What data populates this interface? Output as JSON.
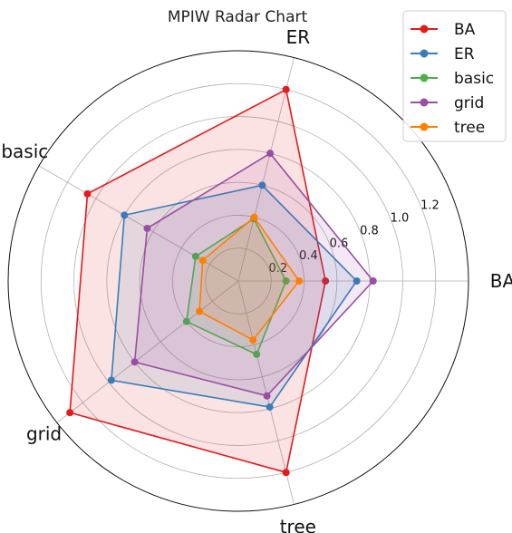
{
  "chart_data": {
    "type": "radar",
    "title": "MPIW Radar Chart",
    "axes": [
      "BA",
      "ER",
      "tree",
      "grid",
      "basic"
    ],
    "axis_order_display": [
      "BA",
      "ER",
      "basic",
      "grid",
      "tree"
    ],
    "r_ticks": [
      0.2,
      0.4,
      0.6,
      0.8,
      1.0,
      1.2
    ],
    "r_tick_labels": [
      "0.2",
      "0.4",
      "0.6",
      "0.8",
      "1.0",
      "1.2"
    ],
    "rlim": [
      0,
      1.4
    ],
    "grid": true,
    "legend_position": "top-right",
    "series": [
      {
        "name": "BA",
        "color": "#e41a1c",
        "values": {
          "BA": 0.53,
          "ER": 1.2,
          "basic": 1.06,
          "grid": 1.3,
          "tree": 1.2
        }
      },
      {
        "name": "ER",
        "color": "#377eb8",
        "values": {
          "BA": 0.72,
          "ER": 0.6,
          "basic": 0.8,
          "grid": 0.98,
          "tree": 0.79
        }
      },
      {
        "name": "basic",
        "color": "#4daf4a",
        "values": {
          "BA": 0.29,
          "ER": 0.39,
          "basic": 0.3,
          "grid": 0.4,
          "tree": 0.46
        }
      },
      {
        "name": "grid",
        "color": "#984ea3",
        "values": {
          "BA": 0.82,
          "ER": 0.8,
          "basic": 0.64,
          "grid": 0.8,
          "tree": 0.72
        }
      },
      {
        "name": "tree",
        "color": "#ff7f00",
        "values": {
          "BA": 0.37,
          "ER": 0.4,
          "basic": 0.25,
          "grid": 0.3,
          "tree": 0.37
        }
      }
    ]
  }
}
